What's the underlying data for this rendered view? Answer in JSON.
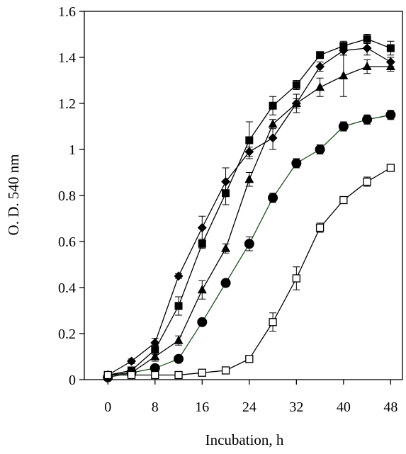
{
  "chart_data": {
    "type": "line",
    "title": "",
    "xlabel": "Incubation, h",
    "ylabel": "O. D. 540 nm",
    "xlim": [
      -4,
      50
    ],
    "ylim": [
      0,
      1.6
    ],
    "xticks": [
      0,
      8,
      16,
      24,
      32,
      40,
      48
    ],
    "yticks": [
      0,
      0.2,
      0.4,
      0.6,
      0.8,
      1,
      1.2,
      1.4,
      1.6
    ],
    "ytick_labels": [
      "0",
      "0.2",
      "0.4",
      "0.6",
      "0.8",
      "1",
      "1.2",
      "1.4",
      "1.6"
    ],
    "grid": false,
    "legend": "none",
    "series": [
      {
        "marker": "diamond",
        "color": "#000000",
        "x": [
          0,
          4,
          8,
          12,
          16,
          20,
          24,
          28,
          32,
          36,
          40,
          44,
          48
        ],
        "y": [
          0.02,
          0.08,
          0.16,
          0.45,
          0.66,
          0.86,
          0.99,
          1.05,
          1.2,
          1.36,
          1.43,
          1.44,
          1.38
        ],
        "err": [
          0.01,
          0.01,
          0.02,
          0.01,
          0.05,
          0.06,
          0.02,
          0.05,
          0.02,
          0.02,
          0.02,
          0.03,
          0.02
        ]
      },
      {
        "marker": "square-filled",
        "color": "#000000",
        "x": [
          0,
          4,
          8,
          12,
          16,
          20,
          24,
          28,
          32,
          36,
          40,
          44,
          48
        ],
        "y": [
          0.02,
          0.04,
          0.13,
          0.32,
          0.59,
          0.81,
          1.04,
          1.19,
          1.28,
          1.41,
          1.45,
          1.48,
          1.44
        ],
        "err": [
          0.01,
          0.01,
          0.02,
          0.04,
          0.02,
          0.05,
          0.08,
          0.04,
          0.02,
          0.01,
          0.02,
          0.02,
          0.03
        ]
      },
      {
        "marker": "triangle",
        "color": "#000000",
        "x": [
          0,
          4,
          8,
          12,
          16,
          20,
          24,
          28,
          32,
          36,
          40,
          44,
          48
        ],
        "y": [
          0.02,
          0.03,
          0.1,
          0.17,
          0.39,
          0.57,
          0.87,
          1.11,
          1.2,
          1.27,
          1.32,
          1.36,
          1.36
        ],
        "err": [
          0.01,
          0.01,
          0.02,
          0.02,
          0.04,
          0.02,
          0.03,
          0.02,
          0.04,
          0.04,
          0.09,
          0.03,
          0.02
        ]
      },
      {
        "marker": "circle-filled",
        "color": "#000000",
        "line_color": "#1f4e1f",
        "x": [
          0,
          4,
          8,
          12,
          16,
          20,
          24,
          28,
          32,
          36,
          40,
          44,
          48
        ],
        "y": [
          0.01,
          0.03,
          0.05,
          0.09,
          0.25,
          0.42,
          0.59,
          0.79,
          0.94,
          1.0,
          1.1,
          1.13,
          1.15
        ],
        "err": [
          0.01,
          0.01,
          0.01,
          0.01,
          0.01,
          0.01,
          0.03,
          0.02,
          0.02,
          0.02,
          0.02,
          0.02,
          0.02
        ]
      },
      {
        "marker": "square-open",
        "color": "#000000",
        "x": [
          0,
          4,
          8,
          12,
          16,
          20,
          24,
          28,
          32,
          36,
          40,
          44,
          48
        ],
        "y": [
          0.02,
          0.02,
          0.02,
          0.02,
          0.03,
          0.04,
          0.09,
          0.25,
          0.44,
          0.66,
          0.78,
          0.86,
          0.92
        ],
        "err": [
          0.01,
          0.01,
          0.01,
          0.01,
          0.01,
          0.01,
          0.01,
          0.04,
          0.05,
          0.02,
          0.01,
          0.02,
          0.01
        ]
      }
    ]
  }
}
